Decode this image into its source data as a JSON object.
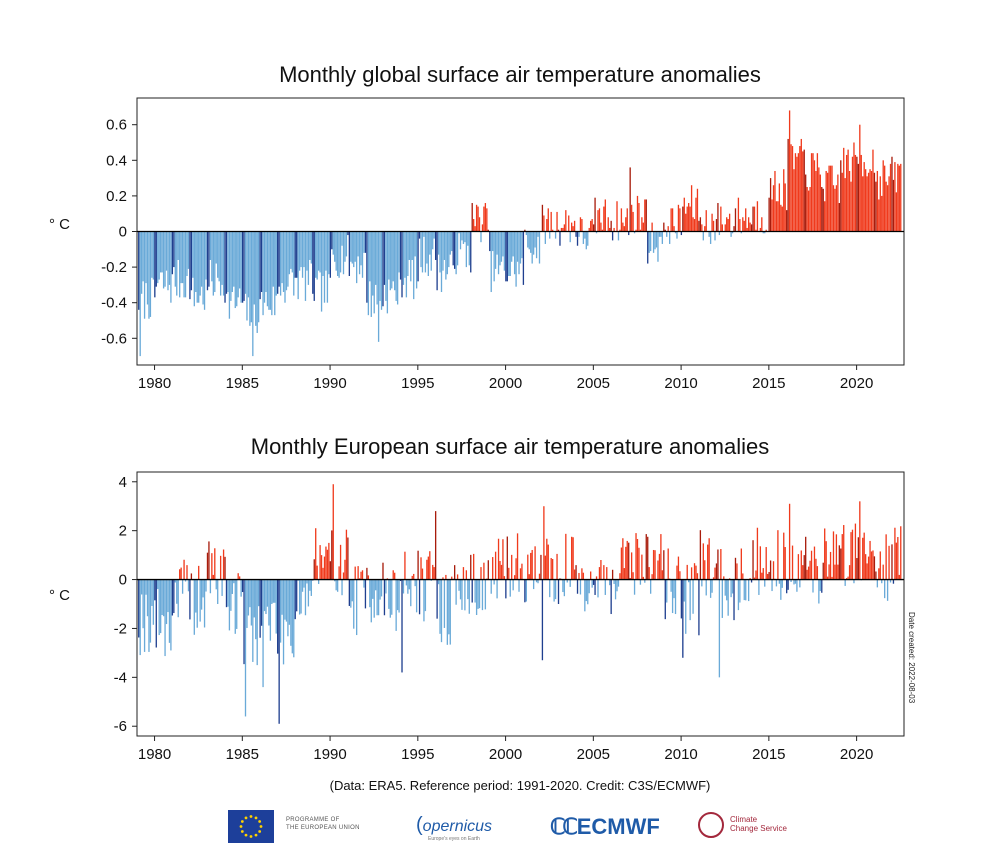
{
  "credit": "(Data: ERA5.  Reference period: 1991-2020.  Credit: C3S/ECMWF)",
  "side_note": "Date created: 2022-08-03",
  "logos": {
    "eu_text_line1": "PROGRAMME OF",
    "eu_text_line2": "THE EUROPEAN UNION",
    "copernicus": "opernicus",
    "copernicus_sub": "Europe's eyes on Earth",
    "ecmwf": "ECMWF",
    "c3s_line1": "Climate",
    "c3s_line2": "Change Service"
  },
  "colors": {
    "positive": "#f03a1c",
    "positive_dark": "#a81c0c",
    "negative": "#6aaad8",
    "negative_dark": "#1f3f8f",
    "zero_line": "#000000",
    "eu_flag": "#1d3f9a",
    "eu_star": "#ffd200"
  },
  "chart_data": [
    {
      "type": "bar",
      "title": "Monthly global surface air temperature anomalies",
      "ylabel": "° C",
      "xlabel": "",
      "ylim": [
        -0.75,
        0.75
      ],
      "yticks": [
        -0.6,
        -0.4,
        -0.2,
        0,
        0.2,
        0.4,
        0.6
      ],
      "ytick_labels": [
        "-0.6",
        "-0.4",
        "-0.2",
        "0",
        "0.2",
        "0.4",
        "0.6"
      ],
      "xlim": [
        1979,
        2022.7
      ],
      "xticks": [
        1980,
        1985,
        1990,
        1995,
        2000,
        2005,
        2010,
        2015,
        2020
      ],
      "xtick_labels": [
        "1980",
        "1985",
        "1990",
        "1995",
        "2000",
        "2005",
        "2010",
        "2015",
        "2020"
      ],
      "grid": false,
      "legend": "none",
      "x_start": "1979-01",
      "x_step": "1 month",
      "note": "monthly values, estimated from the plot",
      "yearly_means": [
        -0.38,
        -0.3,
        -0.28,
        -0.36,
        -0.28,
        -0.4,
        -0.46,
        -0.4,
        -0.3,
        -0.28,
        -0.34,
        -0.14,
        -0.18,
        -0.38,
        -0.34,
        -0.26,
        -0.14,
        -0.22,
        -0.12,
        0.06,
        -0.22,
        -0.22,
        -0.08,
        0.04,
        0.04,
        -0.02,
        0.08,
        0.06,
        0.1,
        -0.06,
        0.04,
        0.14,
        0.04,
        0.06,
        0.08,
        0.1,
        0.24,
        0.4,
        0.34,
        0.26,
        0.38,
        0.4,
        0.3,
        0.32
      ],
      "values": []
    },
    {
      "type": "bar",
      "title": "Monthly European surface air temperature anomalies",
      "ylabel": "° C",
      "xlabel": "",
      "ylim": [
        -6.4,
        4.4
      ],
      "yticks": [
        -6,
        -4,
        -2,
        0,
        2,
        4
      ],
      "ytick_labels": [
        "-6",
        "-4",
        "-2",
        "0",
        "2",
        "4"
      ],
      "xlim": [
        1979,
        2022.7
      ],
      "xticks": [
        1980,
        1985,
        1990,
        1995,
        2000,
        2005,
        2010,
        2015,
        2020
      ],
      "xtick_labels": [
        "1980",
        "1985",
        "1990",
        "1995",
        "2000",
        "2005",
        "2010",
        "2015",
        "2020"
      ],
      "grid": false,
      "legend": "none",
      "x_start": "1979-01",
      "x_step": "1 month",
      "note": "monthly values, estimated from the plot",
      "yearly_means": [
        -1.6,
        -1.8,
        -0.6,
        -0.9,
        0.2,
        -1.0,
        -2.0,
        -1.7,
        -2.0,
        -0.6,
        0.4,
        0.8,
        -0.8,
        -0.4,
        -0.9,
        -0.2,
        -0.3,
        -1.2,
        -0.4,
        -0.2,
        0.2,
        0.6,
        0.4,
        0.3,
        0.4,
        0.1,
        -0.2,
        0.5,
        0.8,
        0.6,
        -0.2,
        -0.8,
        0.6,
        -0.2,
        0.2,
        0.8,
        0.6,
        0.7,
        0.4,
        0.9,
        1.1,
        1.2,
        0.6,
        1.0
      ],
      "values": []
    }
  ]
}
